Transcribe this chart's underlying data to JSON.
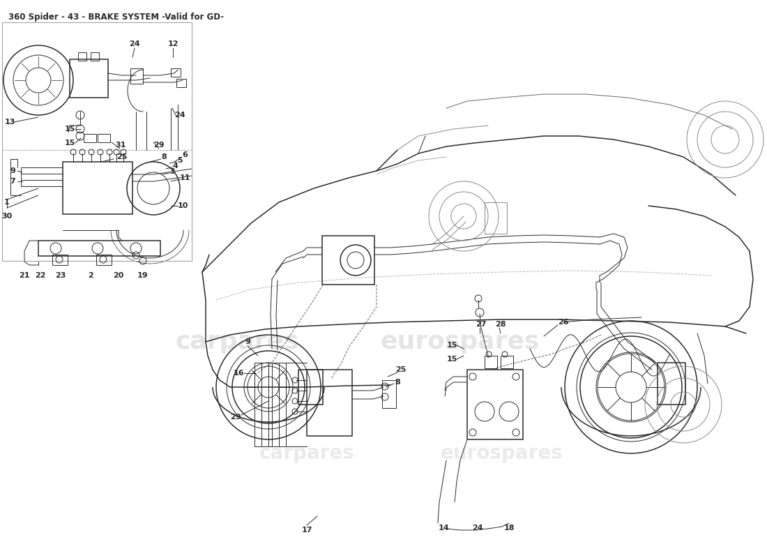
{
  "title": "360 Spider - 43 - BRAKE SYSTEM -Valid for GD-",
  "title_fontsize": 8.5,
  "title_color": "#222222",
  "background_color": "#ffffff",
  "line_color": "#2a2a2a",
  "line_color_light": "#555555",
  "watermark1": "carpares",
  "watermark2": "eurospares",
  "watermark_color": "#cccccc",
  "fig_width": 11.0,
  "fig_height": 8.0,
  "dpi": 100
}
